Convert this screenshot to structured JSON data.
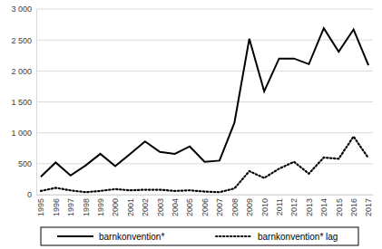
{
  "chart_data": {
    "type": "line",
    "categories": [
      "1995",
      "1996",
      "1997",
      "1998",
      "1999",
      "2000",
      "2001",
      "2002",
      "2003",
      "2004",
      "2005",
      "2006",
      "2007",
      "2008",
      "2009",
      "2010",
      "2011",
      "2012",
      "2013",
      "2014",
      "2015",
      "2016",
      "2017"
    ],
    "series": [
      {
        "name": "barnkonvention*",
        "color": "#000000",
        "line_style": "solid",
        "values": [
          290,
          520,
          310,
          470,
          660,
          460,
          660,
          860,
          690,
          660,
          780,
          530,
          550,
          1160,
          2520,
          1670,
          2200,
          2200,
          2110,
          2690,
          2310,
          2670,
          2090
        ]
      },
      {
        "name": "barnkonvention* lag",
        "color": "#000000",
        "line_style": "dotted",
        "values": [
          60,
          110,
          70,
          40,
          60,
          90,
          70,
          80,
          80,
          60,
          70,
          50,
          40,
          100,
          380,
          270,
          420,
          530,
          340,
          600,
          580,
          940,
          590
        ]
      }
    ],
    "ylim": [
      0,
      3000
    ],
    "yticks": [
      0,
      500,
      {
        "value": 1000,
        "label": "1 000"
      },
      {
        "value": 1500,
        "label": "1 500"
      },
      {
        "value": 2000,
        "label": "2 000"
      },
      {
        "value": 2500,
        "label": "2 500"
      },
      {
        "value": 3000,
        "label": "3 000"
      }
    ],
    "grid": true,
    "legend": "bottom"
  }
}
